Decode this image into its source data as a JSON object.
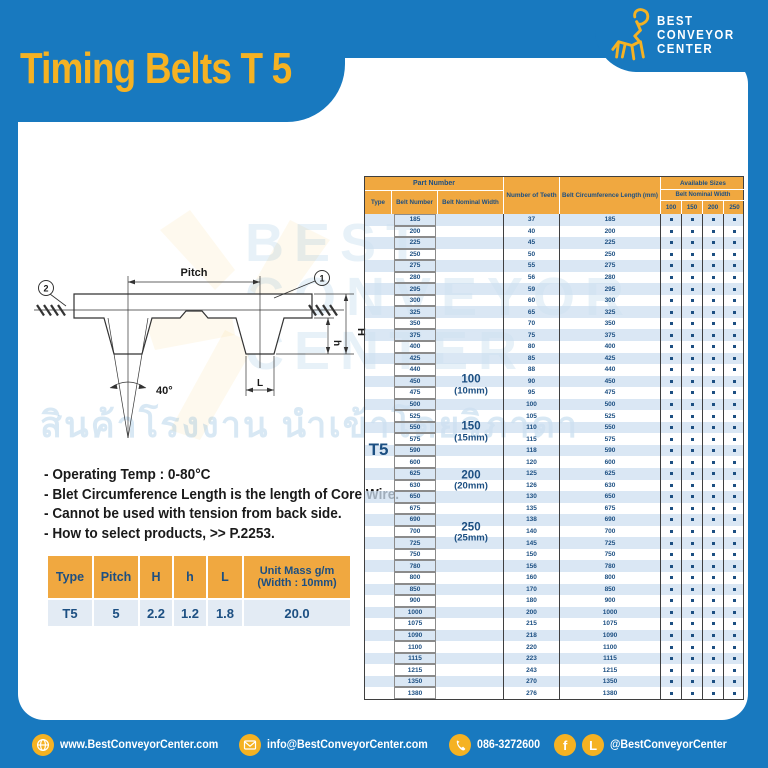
{
  "header": {
    "title": "Timing Belts T 5",
    "logo": {
      "lines": [
        "BEST",
        "CONVEYOR",
        "CENTER"
      ]
    }
  },
  "diagram": {
    "pitch_label": "Pitch",
    "angle_label": "40°",
    "l_label": "L",
    "h_label": "h",
    "H_label": "H",
    "callout_1": "1",
    "callout_2": "2"
  },
  "notes": [
    "- Operating Temp : 0-80°C",
    "- Blet Circumference Length is the length of Core Wire.",
    "- Cannot be used with tension from back side.",
    "- How to select products, >> P.2253."
  ],
  "spec_table": {
    "columns": [
      "Type",
      "Pitch",
      "H",
      "h",
      "L"
    ],
    "unit_mass_line1": "Unit Mass g/m",
    "unit_mass_line2": "(Width : 10mm)",
    "values": [
      "T5",
      "5",
      "2.2",
      "1.2",
      "1.8",
      "20.0"
    ]
  },
  "main_table": {
    "headers": {
      "part_number": "Part Number",
      "type": "Type",
      "belt_number": "Belt Number",
      "belt_nominal_width": "Belt Nominal Width",
      "number_of_teeth": "Number of Teeth",
      "belt_circumference_length": "Belt Circumference Length (mm)",
      "available_sizes": "Available Sizes",
      "available_sizes_sub": "Belt Nominal Width",
      "size_columns": [
        "100",
        "150",
        "200",
        "250"
      ]
    },
    "type_value": "T5",
    "nominal_width_labels": [
      {
        "size": "100",
        "mm": "(10mm)"
      },
      {
        "size": "150",
        "mm": "(15mm)"
      },
      {
        "size": "200",
        "mm": "(20mm)"
      },
      {
        "size": "250",
        "mm": "(25mm)"
      }
    ],
    "all_sizes_available": true,
    "rows": [
      {
        "belt_number": "185",
        "teeth": "37",
        "length_mm": "185"
      },
      {
        "belt_number": "200",
        "teeth": "40",
        "length_mm": "200"
      },
      {
        "belt_number": "225",
        "teeth": "45",
        "length_mm": "225"
      },
      {
        "belt_number": "250",
        "teeth": "50",
        "length_mm": "250"
      },
      {
        "belt_number": "275",
        "teeth": "55",
        "length_mm": "275"
      },
      {
        "belt_number": "280",
        "teeth": "56",
        "length_mm": "280"
      },
      {
        "belt_number": "295",
        "teeth": "59",
        "length_mm": "295"
      },
      {
        "belt_number": "300",
        "teeth": "60",
        "length_mm": "300"
      },
      {
        "belt_number": "325",
        "teeth": "65",
        "length_mm": "325"
      },
      {
        "belt_number": "350",
        "teeth": "70",
        "length_mm": "350"
      },
      {
        "belt_number": "375",
        "teeth": "75",
        "length_mm": "375"
      },
      {
        "belt_number": "400",
        "teeth": "80",
        "length_mm": "400"
      },
      {
        "belt_number": "425",
        "teeth": "85",
        "length_mm": "425"
      },
      {
        "belt_number": "440",
        "teeth": "88",
        "length_mm": "440"
      },
      {
        "belt_number": "450",
        "teeth": "90",
        "length_mm": "450"
      },
      {
        "belt_number": "475",
        "teeth": "95",
        "length_mm": "475"
      },
      {
        "belt_number": "500",
        "teeth": "100",
        "length_mm": "500"
      },
      {
        "belt_number": "525",
        "teeth": "105",
        "length_mm": "525"
      },
      {
        "belt_number": "550",
        "teeth": "110",
        "length_mm": "550"
      },
      {
        "belt_number": "575",
        "teeth": "115",
        "length_mm": "575"
      },
      {
        "belt_number": "590",
        "teeth": "118",
        "length_mm": "590"
      },
      {
        "belt_number": "600",
        "teeth": "120",
        "length_mm": "600"
      },
      {
        "belt_number": "625",
        "teeth": "125",
        "length_mm": "625"
      },
      {
        "belt_number": "630",
        "teeth": "126",
        "length_mm": "630"
      },
      {
        "belt_number": "650",
        "teeth": "130",
        "length_mm": "650"
      },
      {
        "belt_number": "675",
        "teeth": "135",
        "length_mm": "675"
      },
      {
        "belt_number": "690",
        "teeth": "138",
        "length_mm": "690"
      },
      {
        "belt_number": "700",
        "teeth": "140",
        "length_mm": "700"
      },
      {
        "belt_number": "725",
        "teeth": "145",
        "length_mm": "725"
      },
      {
        "belt_number": "750",
        "teeth": "150",
        "length_mm": "750"
      },
      {
        "belt_number": "780",
        "teeth": "156",
        "length_mm": "780"
      },
      {
        "belt_number": "800",
        "teeth": "160",
        "length_mm": "800"
      },
      {
        "belt_number": "850",
        "teeth": "170",
        "length_mm": "850"
      },
      {
        "belt_number": "900",
        "teeth": "180",
        "length_mm": "900"
      },
      {
        "belt_number": "1000",
        "teeth": "200",
        "length_mm": "1000"
      },
      {
        "belt_number": "1075",
        "teeth": "215",
        "length_mm": "1075"
      },
      {
        "belt_number": "1090",
        "teeth": "218",
        "length_mm": "1090"
      },
      {
        "belt_number": "1100",
        "teeth": "220",
        "length_mm": "1100"
      },
      {
        "belt_number": "1115",
        "teeth": "223",
        "length_mm": "1115"
      },
      {
        "belt_number": "1215",
        "teeth": "243",
        "length_mm": "1215"
      },
      {
        "belt_number": "1350",
        "teeth": "270",
        "length_mm": "1350"
      },
      {
        "belt_number": "1380",
        "teeth": "276",
        "length_mm": "1380"
      }
    ]
  },
  "watermark": {
    "lines": [
      "BEST",
      "CONVEYOR",
      "CENTER"
    ],
    "thai": "สินค้าโรงงาน นำเข้าโดยวิภาดา"
  },
  "footer": {
    "website": "www.BestConveyorCenter.com",
    "email": "info@BestConveyorCenter.com",
    "phone": "086-3272600",
    "social": "@BestConveyorCenter"
  },
  "colors": {
    "page_blue": "#1879BF",
    "brand_yellow": "#F5B223",
    "table_header_amber": "#F0A840",
    "navy_text": "#1C4F82",
    "row_stripe": "#D9E7F3"
  }
}
